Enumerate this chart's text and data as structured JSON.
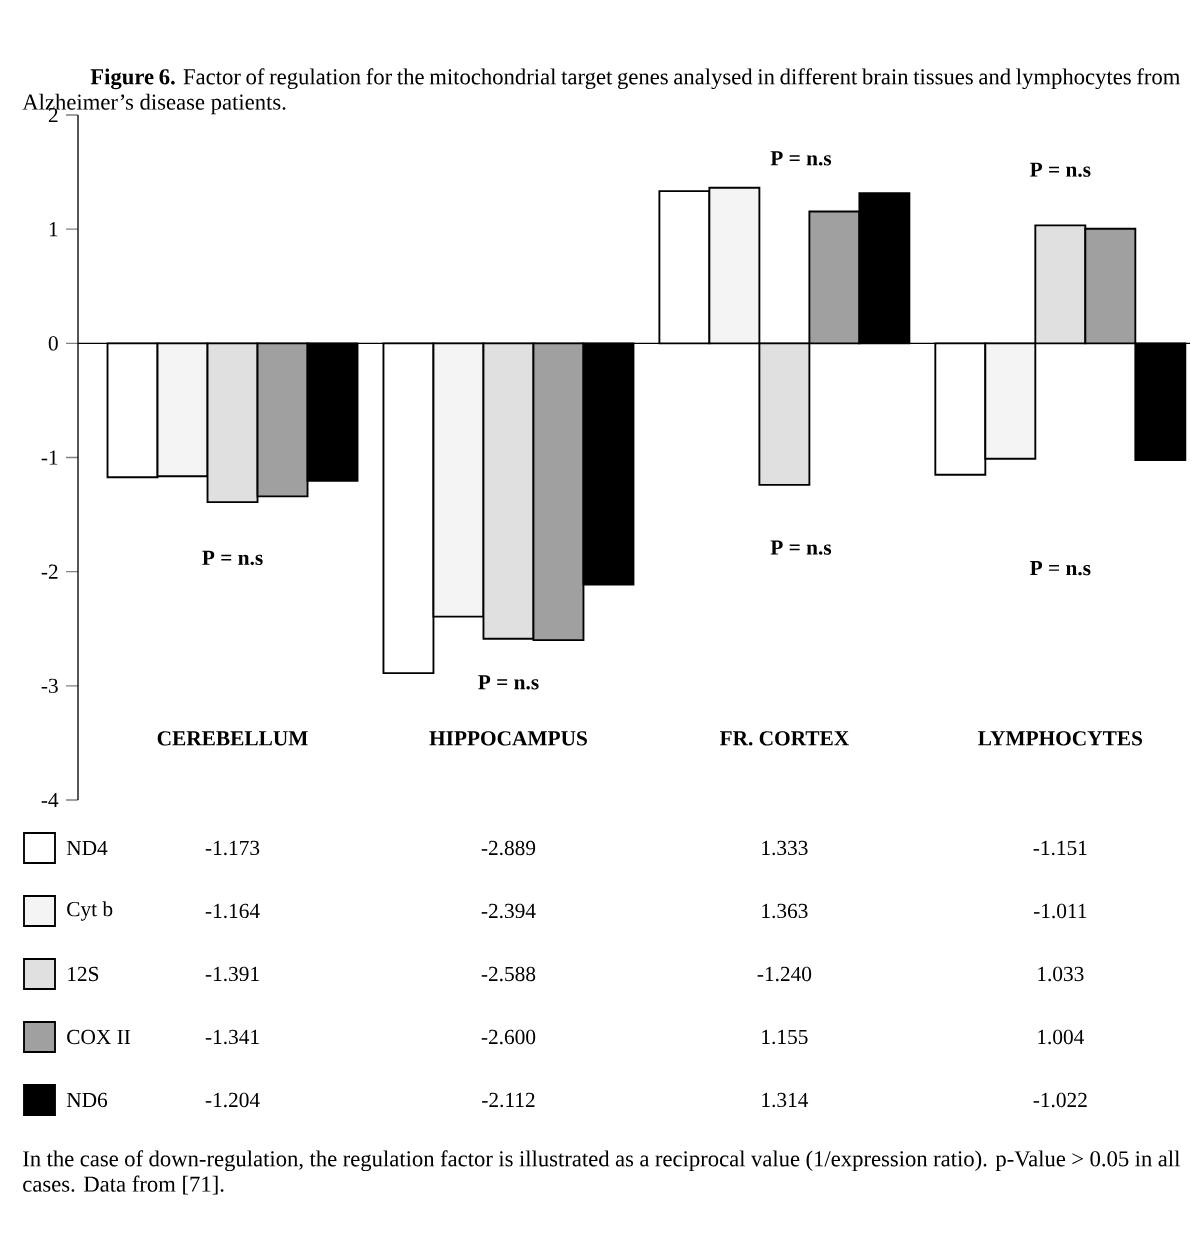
{
  "chart_data": {
    "type": "bar",
    "title": "**Figure 6.** Factor of regulation for the mitochondrial target genes analysed in different brain tissues and lymphocytes from Alzheimer’s disease patients.",
    "categories": [
      "CEREBELLUM",
      "HIPPOCAMPUS",
      "FR. CORTEX",
      "LYMPHOCYTES"
    ],
    "series": [
      {
        "name": "ND4",
        "color": "#ffffff",
        "values": [
          -1.173,
          -2.889,
          1.333,
          -1.151
        ],
        "value_labels": [
          "-1.173",
          "-2.889",
          "1.333",
          "-1.151"
        ]
      },
      {
        "name": "Cyt b",
        "color": "#f4f4f4",
        "values": [
          -1.164,
          -2.394,
          1.363,
          -1.011
        ],
        "value_labels": [
          "-1.164",
          "-2.394",
          "1.363",
          "-1.011"
        ]
      },
      {
        "name": "12S",
        "color": "#e0e0e0",
        "values": [
          -1.391,
          -2.588,
          -1.24,
          1.033
        ],
        "value_labels": [
          "-1.391",
          "-2.588",
          "-1.240",
          "1.033"
        ]
      },
      {
        "name": "COX II",
        "color": "#a0a0a0",
        "values": [
          -1.341,
          -2.6,
          1.155,
          1.004
        ],
        "value_labels": [
          "-1.341",
          "-2.600",
          "1.155",
          "1.004"
        ]
      },
      {
        "name": "ND6",
        "color": "#000000",
        "values": [
          -1.204,
          -2.112,
          1.314,
          -1.022
        ],
        "value_labels": [
          "-1.204",
          "-2.112",
          "1.314",
          "-1.022"
        ]
      }
    ],
    "ylim": [
      -4,
      2
    ],
    "yticks": [
      -4,
      -3,
      -2,
      -1,
      0,
      1,
      2
    ],
    "legend": "bottom",
    "annotations": [
      "P = n.s",
      "P = n.s",
      "P = n.s",
      "P = n.s",
      "P = n.s",
      "P = n.s",
      "In the case of down-regulation, the regulation factor is illustrated as a reciprocal value (1/expression ratio). p-Value > 0.05 in all cases. Data from [71]."
    ]
  }
}
